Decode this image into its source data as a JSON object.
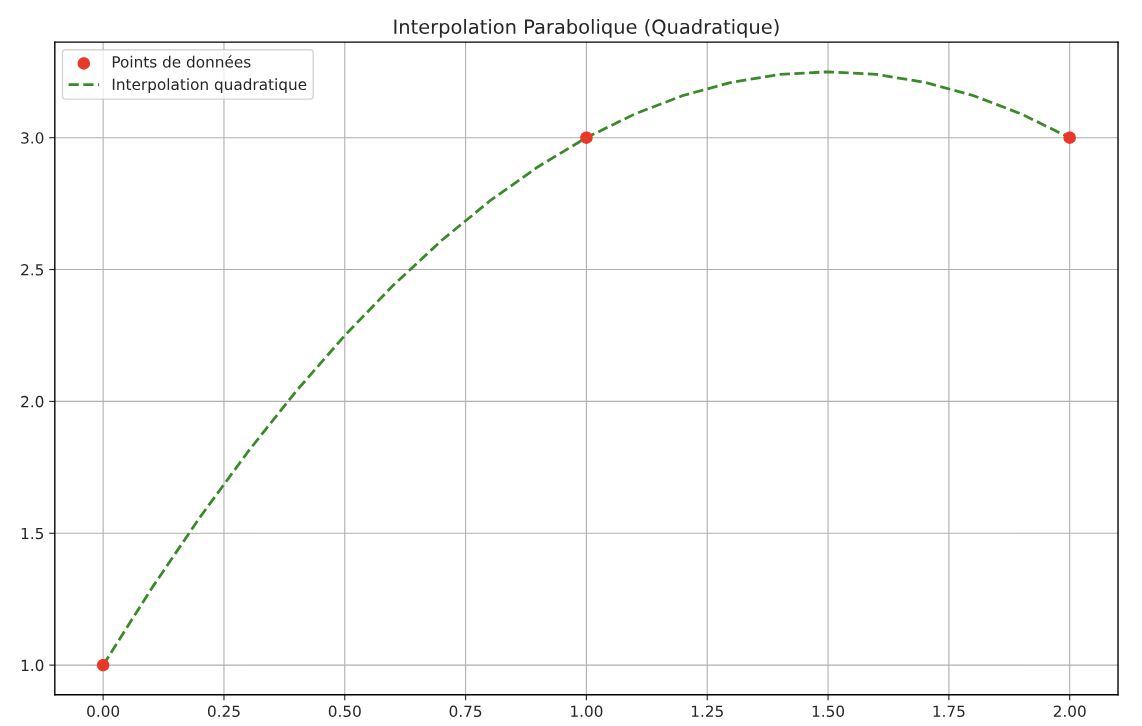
{
  "chart_data": {
    "type": "line",
    "title": "Interpolation Parabolique (Quadratique)",
    "xlim": [
      -0.1,
      2.1
    ],
    "xticks": [
      {
        "value": 0,
        "label": "0.00"
      },
      {
        "value": 0.25,
        "label": "0.25"
      },
      {
        "value": 0.5,
        "label": "0.50"
      },
      {
        "value": 0.75,
        "label": "0.75"
      },
      {
        "value": 1,
        "label": "1.00"
      },
      {
        "value": 1.25,
        "label": "1.25"
      },
      {
        "value": 1.5,
        "label": "1.50"
      },
      {
        "value": 1.75,
        "label": "1.75"
      },
      {
        "value": 2,
        "label": "2.00"
      }
    ],
    "ylim": [
      0.8875,
      3.3625
    ],
    "yticks": [
      {
        "value": 1,
        "label": "1.0"
      },
      {
        "value": 1.5,
        "label": "1.5"
      },
      {
        "value": 2,
        "label": "2.0"
      },
      {
        "value": 2.5,
        "label": "2.5"
      },
      {
        "value": 3,
        "label": "3.0"
      }
    ],
    "grid": true,
    "legend": "top left",
    "series": [
      {
        "name": "Points de données",
        "type": "scatter",
        "marker": "circle",
        "color": "#e8382a",
        "x": [
          0,
          1,
          2
        ],
        "values": [
          1,
          3,
          3
        ]
      },
      {
        "name": "Interpolation quadratique",
        "line_style": "dashed",
        "marker": "none",
        "color": "#3a8a2a",
        "x": [
          0,
          0.1,
          0.2,
          0.3,
          0.4,
          0.5,
          0.6,
          0.7,
          0.8,
          0.9,
          1.0,
          1.1,
          1.2,
          1.3,
          1.4,
          1.5,
          1.6,
          1.7,
          1.8,
          1.9,
          2.0
        ],
        "values": [
          1,
          1.29,
          1.56,
          1.81,
          2.04,
          2.25,
          2.44,
          2.61,
          2.76,
          2.89,
          3.0,
          3.09,
          3.16,
          3.21,
          3.24,
          3.25,
          3.24,
          3.21,
          3.16,
          3.09,
          3.0
        ]
      }
    ]
  }
}
